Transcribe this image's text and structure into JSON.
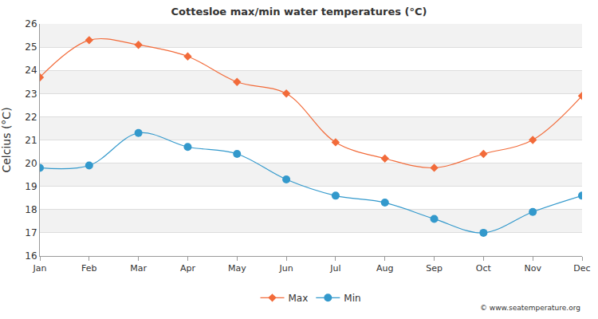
{
  "chart_data": {
    "type": "line",
    "title": "Cottesloe max/min water temperatures (°C)",
    "y_label": "Celcius (°C)",
    "categories": [
      "Jan",
      "Feb",
      "Mar",
      "Apr",
      "May",
      "Jun",
      "Jul",
      "Aug",
      "Sep",
      "Oct",
      "Nov",
      "Dec"
    ],
    "series": [
      {
        "name": "Max",
        "color": "#f26b3a",
        "marker": "diamond",
        "values": [
          23.7,
          25.3,
          25.1,
          24.6,
          23.5,
          23.0,
          20.9,
          20.2,
          19.8,
          20.4,
          21.0,
          22.9
        ]
      },
      {
        "name": "Min",
        "color": "#3399cc",
        "marker": "circle",
        "values": [
          19.8,
          19.9,
          21.3,
          20.7,
          20.4,
          19.3,
          18.6,
          18.3,
          17.6,
          17.0,
          17.9,
          18.6
        ]
      }
    ],
    "ylim": [
      16,
      26
    ],
    "yticks": [
      16,
      17,
      18,
      19,
      20,
      21,
      22,
      23,
      24,
      25,
      26
    ],
    "grid": true,
    "legend": "bottom",
    "annotations": [
      {
        "text": "© www.seatemperature.org"
      }
    ]
  }
}
